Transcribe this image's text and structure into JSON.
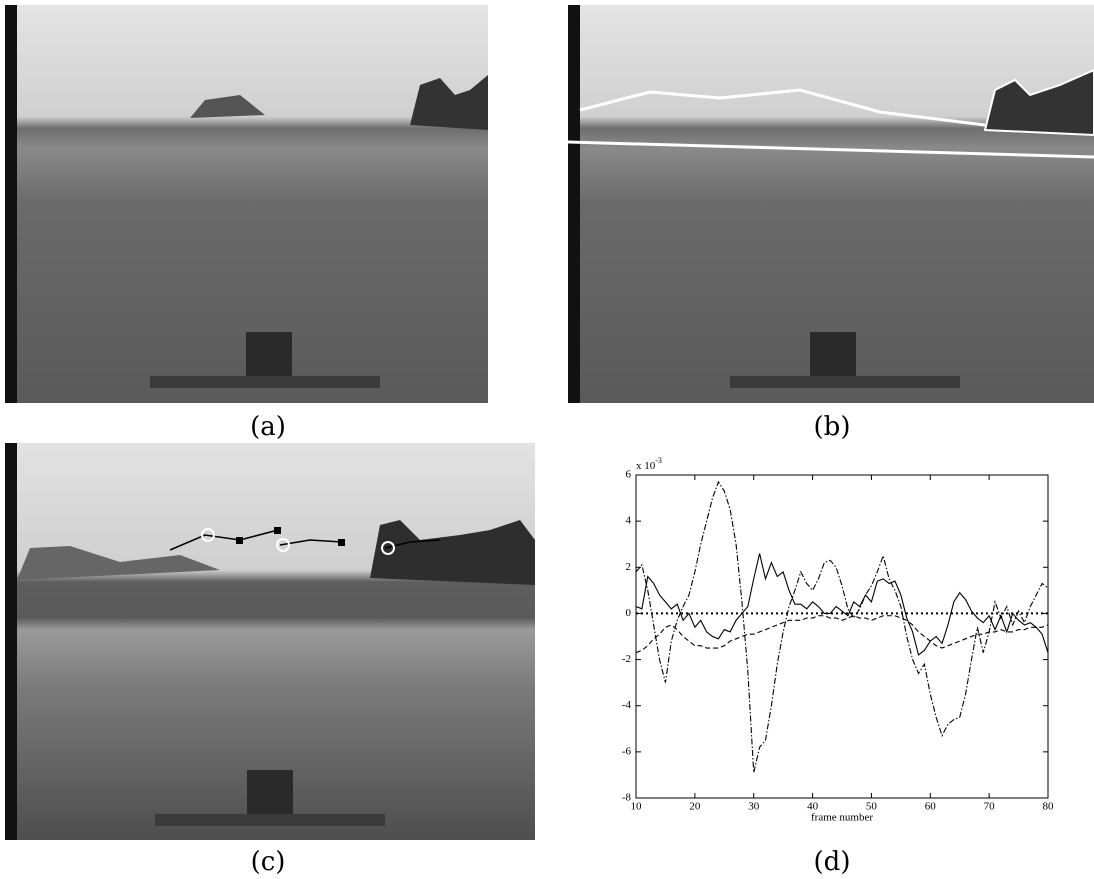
{
  "captions": {
    "a": "(a)",
    "b": "(b)",
    "c": "(c)",
    "d": "(d)"
  },
  "chart_data": {
    "type": "line",
    "xlabel": "frame number",
    "y_multiplier": {
      "base": "x 10",
      "exponent": "-3"
    },
    "x": [
      10,
      11,
      12,
      13,
      14,
      15,
      16,
      17,
      18,
      19,
      20,
      21,
      22,
      23,
      24,
      25,
      26,
      27,
      28,
      29,
      30,
      31,
      32,
      33,
      34,
      35,
      36,
      37,
      38,
      39,
      40,
      41,
      42,
      43,
      44,
      45,
      46,
      47,
      48,
      49,
      50,
      51,
      52,
      53,
      54,
      55,
      56,
      57,
      58,
      59,
      60,
      61,
      62,
      63,
      64,
      65,
      66,
      67,
      68,
      69,
      70,
      71,
      72,
      73,
      74,
      75,
      76,
      77,
      78,
      79,
      80
    ],
    "hline": 0,
    "series": [
      {
        "color": "#000000",
        "style": "solid",
        "values": [
          0.3,
          0.2,
          1.6,
          1.3,
          0.8,
          0.5,
          0.2,
          0.4,
          -0.3,
          0,
          -0.6,
          -0.3,
          -0.8,
          -1.0,
          -1.1,
          -0.7,
          -0.8,
          -0.3,
          0,
          0.3,
          1.5,
          2.6,
          1.5,
          2.2,
          1.6,
          1.8,
          1.0,
          0.4,
          0.4,
          0.2,
          0.5,
          0.3,
          0,
          0,
          0.3,
          0.1,
          -0.1,
          0.5,
          0.3,
          0.8,
          0.5,
          1.4,
          1.5,
          1.3,
          1.4,
          0.8,
          -0.2,
          -0.8,
          -1.8,
          -1.6,
          -1.2,
          -1.0,
          -1.3,
          -0.5,
          0.5,
          0.9,
          0.6,
          0.1,
          -0.2,
          -0.4,
          -0.1,
          -0.7,
          -0.1,
          -0.8,
          0,
          -0.3,
          -0.5,
          -0.4,
          -0.6,
          -0.9,
          -1.7
        ]
      },
      {
        "color": "#000000",
        "style": "dashed",
        "values": [
          -1.7,
          -1.6,
          -1.4,
          -1.1,
          -0.9,
          -0.6,
          -0.5,
          -0.7,
          -1.0,
          -1.2,
          -1.4,
          -1.4,
          -1.5,
          -1.5,
          -1.5,
          -1.4,
          -1.2,
          -1.1,
          -1.0,
          -0.9,
          -0.9,
          -0.8,
          -0.7,
          -0.6,
          -0.5,
          -0.4,
          -0.3,
          -0.3,
          -0.3,
          -0.2,
          -0.2,
          -0.1,
          -0.1,
          -0.2,
          -0.2,
          -0.3,
          -0.2,
          -0.1,
          -0.2,
          -0.2,
          -0.3,
          -0.2,
          -0.1,
          -0.1,
          -0.1,
          -0.2,
          -0.3,
          -0.5,
          -0.8,
          -1.0,
          -1.2,
          -1.4,
          -1.5,
          -1.4,
          -1.3,
          -1.2,
          -1.1,
          -1.0,
          -0.9,
          -0.9,
          -0.8,
          -0.8,
          -0.7,
          -0.8,
          -0.8,
          -0.7,
          -0.7,
          -0.6,
          -0.6,
          -0.6,
          -0.5
        ]
      },
      {
        "color": "#000000",
        "style": "dashdot",
        "values": [
          1.8,
          2.1,
          1.0,
          -0.5,
          -2.0,
          -3.0,
          -1.2,
          -0.3,
          0.3,
          0.8,
          1.8,
          3.0,
          4.0,
          5.0,
          5.7,
          5.3,
          4.5,
          3.0,
          0.5,
          -2.5,
          -6.9,
          -5.8,
          -5.5,
          -4.0,
          -2.2,
          -0.8,
          0.3,
          1.0,
          1.8,
          1.3,
          1.0,
          1.5,
          2.2,
          2.3,
          2.0,
          1.2,
          0.2,
          -0.2,
          0.2,
          0.8,
          1.2,
          1.8,
          2.5,
          1.5,
          1.0,
          0.3,
          -1.0,
          -2.0,
          -2.6,
          -2.2,
          -3.5,
          -4.5,
          -5.3,
          -4.8,
          -4.6,
          -4.5,
          -3.5,
          -2.0,
          -0.6,
          -1.7,
          -0.8,
          0.5,
          -0.2,
          0.3,
          -0.5,
          0.1,
          -0.4,
          0.3,
          0.8,
          1.3,
          1.1
        ]
      }
    ],
    "xlim": [
      10,
      80
    ],
    "xticks": [
      10,
      20,
      30,
      40,
      50,
      60,
      70,
      80
    ],
    "ylim": [
      -8,
      6
    ],
    "yticks": [
      -8,
      -6,
      -4,
      -2,
      0,
      2,
      4,
      6
    ]
  }
}
